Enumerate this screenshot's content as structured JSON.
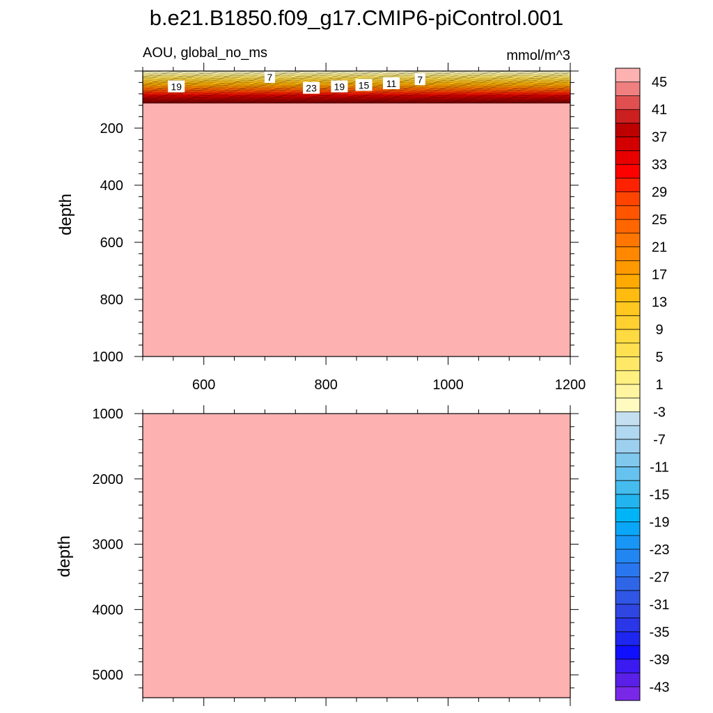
{
  "title": "b.e21.B1850.f09_g17.CMIP6-piControl.001",
  "colors": {
    "deep_fill": "#FDB2B1",
    "background": "#FFFFFF",
    "colorbar_colors": [
      "#FDB2B1",
      "#F08080",
      "#E05050",
      "#CC1F1F",
      "#BD0000",
      "#D40000",
      "#E80000",
      "#FF0000",
      "#FF2200",
      "#FF4400",
      "#FF5500",
      "#FF6600",
      "#FF7700",
      "#FF8800",
      "#FF9900",
      "#FFAA00",
      "#FFBB10",
      "#FFC820",
      "#FFD030",
      "#FFDA40",
      "#FFE050",
      "#FFE866",
      "#FFF080",
      "#FFF5A0",
      "#FFFBC0",
      "#C4E0F0",
      "#B0D8F0",
      "#9CD0EE",
      "#80C8EE",
      "#66C2EE",
      "#44BCEE",
      "#22B4EE",
      "#00B4F8",
      "#0AA6F8",
      "#1896F5",
      "#2286F2",
      "#2A76EE",
      "#2F66E8",
      "#2F56E4",
      "#2F46E2",
      "#2A36E8",
      "#1E26F0",
      "#1010FF",
      "#3A1AF0",
      "#5A20E8",
      "#7A28E8"
    ]
  },
  "chart_data": [
    {
      "type": "heatmap",
      "subtitle_left": "AOU, global_no_ms",
      "subtitle_right": "mmol/m^3",
      "xlabel": "",
      "ylabel": "depth",
      "xlim": [
        500,
        1200
      ],
      "ylim": [
        1000,
        0
      ],
      "x_ticks": [
        600,
        800,
        1000,
        1200
      ],
      "x_tick_labels": [
        "600",
        "800",
        "1000",
        "1200"
      ],
      "y_ticks": [
        200,
        400,
        600,
        800,
        1000
      ],
      "y_tick_labels": [
        "200",
        "400",
        "600",
        "800",
        "1000"
      ],
      "field_summary": "Near-surface band (~0-120 m) with AOU increasing downward from ~1 to ~45; below ~120 m uniformly >45",
      "contour_labels": [
        {
          "value": "19",
          "x": 555,
          "depth": 55
        },
        {
          "value": "7",
          "x": 708,
          "depth": 22
        },
        {
          "value": "23",
          "x": 776,
          "depth": 60
        },
        {
          "value": "19",
          "x": 822,
          "depth": 55
        },
        {
          "value": "15",
          "x": 862,
          "depth": 50
        },
        {
          "value": "11",
          "x": 907,
          "depth": 44
        },
        {
          "value": "7",
          "x": 954,
          "depth": 30
        }
      ]
    },
    {
      "type": "heatmap",
      "xlabel": "",
      "ylabel": "depth",
      "xlim": [
        500,
        1200
      ],
      "ylim": [
        5350,
        1000
      ],
      "y_ticks": [
        1000,
        2000,
        3000,
        4000,
        5000
      ],
      "y_tick_labels": [
        "1000",
        "2000",
        "3000",
        "4000",
        "5000"
      ],
      "field_summary": "Uniformly >45 throughout"
    },
    {
      "type": "colorbar",
      "levels": [
        45,
        41,
        37,
        33,
        29,
        25,
        21,
        17,
        13,
        9,
        5,
        1,
        -3,
        -7,
        -11,
        -15,
        -19,
        -23,
        -27,
        -31,
        -35,
        -39,
        -43
      ],
      "level_labels": [
        "45",
        "41",
        "37",
        "33",
        "29",
        "25",
        "21",
        "17",
        "13",
        "9",
        "5",
        "1",
        "-3",
        "-7",
        "-11",
        "-15",
        "-19",
        "-23",
        "-27",
        "-31",
        "-35",
        "-39",
        "-43"
      ]
    }
  ]
}
